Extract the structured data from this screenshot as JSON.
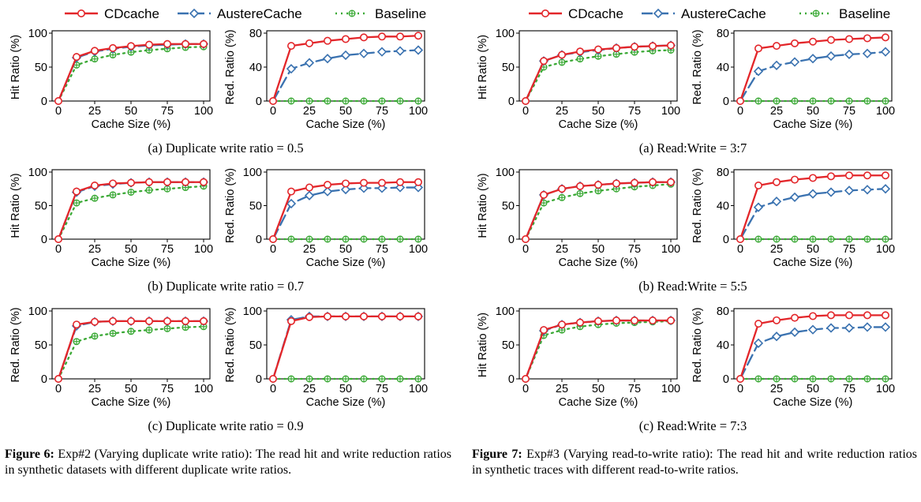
{
  "legend": {
    "cd": "CDcache",
    "austere": "AustereCache",
    "base": "Baseline"
  },
  "colors": {
    "cd": "#e3262a",
    "austere": "#3a72b0",
    "base": "#3aa935"
  },
  "figures": [
    {
      "caption": {
        "label": "Figure 6:",
        "text": " Exp#2 (Varying duplicate write ratio): The read hit and write reduction ratios in synthetic datasets with different duplicate write ratios."
      },
      "rows": [
        {
          "sub": "(a) Duplicate write ratio = 0.5"
        },
        {
          "sub": "(b) Duplicate write ratio = 0.7"
        },
        {
          "sub": "(c) Duplicate write ratio = 0.9"
        }
      ]
    },
    {
      "caption": {
        "label": "Figure 7:",
        "text": " Exp#3 (Varying read-to-write ratio): The read hit and write reduction ratios in synthetic traces with different read-to-write ratios."
      },
      "rows": [
        {
          "sub": "(a) Read:Write = 3:7"
        },
        {
          "sub": "(b) Read:Write = 5:5"
        },
        {
          "sub": "(c) Read:Write = 7:3"
        }
      ]
    }
  ],
  "chart_data": [
    {
      "type": "line",
      "figure": "6a-left",
      "xlabel": "Cache Size (%)",
      "ylabel": "Hit Ratio (%)",
      "xlim": [
        0,
        100
      ],
      "ylim": [
        0,
        100
      ],
      "xticks": [
        0,
        25,
        50,
        75,
        100
      ],
      "yticks": [
        0,
        50,
        100
      ],
      "x": [
        0,
        12.5,
        25,
        37.5,
        50,
        62.5,
        75,
        87.5,
        100
      ],
      "series": [
        {
          "name": "CDcache",
          "values": [
            0,
            65,
            74,
            78,
            81,
            83,
            84,
            84,
            84
          ]
        },
        {
          "name": "AustereCache",
          "values": [
            0,
            64,
            73,
            77,
            80,
            82,
            83,
            84,
            84
          ]
        },
        {
          "name": "Baseline",
          "values": [
            0,
            53,
            62,
            68,
            72,
            75,
            77,
            79,
            80
          ]
        }
      ]
    },
    {
      "type": "line",
      "figure": "6a-right",
      "xlabel": "Cache Size (%)",
      "ylabel": "Red. Ratio (%)",
      "xlim": [
        0,
        100
      ],
      "ylim": [
        0,
        80
      ],
      "xticks": [
        0,
        25,
        50,
        75,
        100
      ],
      "yticks": [
        0,
        40,
        80
      ],
      "x": [
        0,
        12.5,
        25,
        37.5,
        50,
        62.5,
        75,
        87.5,
        100
      ],
      "series": [
        {
          "name": "CDcache",
          "values": [
            0,
            65,
            68,
            71,
            73,
            75,
            76,
            76,
            77
          ]
        },
        {
          "name": "AustereCache",
          "values": [
            0,
            38,
            45,
            50,
            54,
            56,
            58,
            59,
            60
          ]
        },
        {
          "name": "Baseline",
          "values": [
            0,
            0,
            0,
            0,
            0,
            0,
            0,
            0,
            0
          ]
        }
      ]
    },
    {
      "type": "line",
      "figure": "6b-left",
      "xlabel": "Cache Size (%)",
      "ylabel": "Hit Ratio (%)",
      "xlim": [
        0,
        100
      ],
      "ylim": [
        0,
        100
      ],
      "xticks": [
        0,
        25,
        50,
        75,
        100
      ],
      "yticks": [
        0,
        50,
        100
      ],
      "x": [
        0,
        12.5,
        25,
        37.5,
        50,
        62.5,
        75,
        87.5,
        100
      ],
      "series": [
        {
          "name": "CDcache",
          "values": [
            0,
            71,
            80,
            83,
            84,
            85,
            85,
            85,
            85
          ]
        },
        {
          "name": "AustereCache",
          "values": [
            0,
            70,
            79,
            82,
            84,
            85,
            85,
            85,
            85
          ]
        },
        {
          "name": "Baseline",
          "values": [
            0,
            54,
            61,
            66,
            70,
            73,
            75,
            77,
            79
          ]
        }
      ]
    },
    {
      "type": "line",
      "figure": "6b-right",
      "xlabel": "Cache Size (%)",
      "ylabel": "Red. Ratio (%)",
      "xlim": [
        0,
        100
      ],
      "ylim": [
        0,
        100
      ],
      "xticks": [
        0,
        25,
        50,
        75,
        100
      ],
      "yticks": [
        0,
        50,
        100
      ],
      "x": [
        0,
        12.5,
        25,
        37.5,
        50,
        62.5,
        75,
        87.5,
        100
      ],
      "series": [
        {
          "name": "CDcache",
          "values": [
            0,
            71,
            77,
            81,
            83,
            84,
            84,
            85,
            85
          ]
        },
        {
          "name": "AustereCache",
          "values": [
            0,
            53,
            65,
            71,
            74,
            76,
            76,
            77,
            77
          ]
        },
        {
          "name": "Baseline",
          "values": [
            0,
            0,
            0,
            0,
            0,
            0,
            0,
            0,
            0
          ]
        }
      ]
    },
    {
      "type": "line",
      "figure": "6c-left",
      "xlabel": "Cache Size (%)",
      "ylabel": "Red. Ratio (%)",
      "xlim": [
        0,
        100
      ],
      "ylim": [
        0,
        100
      ],
      "xticks": [
        0,
        25,
        50,
        75,
        100
      ],
      "yticks": [
        0,
        50,
        100
      ],
      "x": [
        0,
        12.5,
        25,
        37.5,
        50,
        62.5,
        75,
        87.5,
        100
      ],
      "series": [
        {
          "name": "CDcache",
          "values": [
            0,
            80,
            84,
            85,
            85,
            85,
            85,
            85,
            85
          ]
        },
        {
          "name": "AustereCache",
          "values": [
            0,
            78,
            84,
            85,
            85,
            85,
            85,
            85,
            85
          ]
        },
        {
          "name": "Baseline",
          "values": [
            0,
            55,
            63,
            67,
            70,
            72,
            74,
            76,
            77
          ]
        }
      ]
    },
    {
      "type": "line",
      "figure": "6c-right",
      "xlabel": "Cache Size (%)",
      "ylabel": "Red. Ratio (%)",
      "xlim": [
        0,
        100
      ],
      "ylim": [
        0,
        100
      ],
      "xticks": [
        0,
        25,
        50,
        75,
        100
      ],
      "yticks": [
        0,
        50,
        100
      ],
      "x": [
        0,
        12.5,
        25,
        37.5,
        50,
        62.5,
        75,
        87.5,
        100
      ],
      "series": [
        {
          "name": "CDcache",
          "values": [
            0,
            85,
            91,
            92,
            92,
            92,
            92,
            92,
            92
          ]
        },
        {
          "name": "AustereCache",
          "values": [
            0,
            87,
            92,
            92,
            92,
            92,
            92,
            92,
            92
          ]
        },
        {
          "name": "Baseline",
          "values": [
            0,
            0,
            0,
            0,
            0,
            0,
            0,
            0,
            0
          ]
        }
      ]
    },
    {
      "type": "line",
      "figure": "7a-left",
      "xlabel": "Cache Size (%)",
      "ylabel": "Hit Ratio (%)",
      "xlim": [
        0,
        100
      ],
      "ylim": [
        0,
        100
      ],
      "xticks": [
        0,
        25,
        50,
        75,
        100
      ],
      "yticks": [
        0,
        50,
        100
      ],
      "x": [
        0,
        12.5,
        25,
        37.5,
        50,
        62.5,
        75,
        87.5,
        100
      ],
      "series": [
        {
          "name": "CDcache",
          "values": [
            0,
            59,
            68,
            73,
            76,
            78,
            80,
            81,
            82
          ]
        },
        {
          "name": "AustereCache",
          "values": [
            0,
            59,
            68,
            72,
            75,
            78,
            80,
            81,
            82
          ]
        },
        {
          "name": "Baseline",
          "values": [
            0,
            50,
            57,
            62,
            66,
            69,
            72,
            74,
            75
          ]
        }
      ]
    },
    {
      "type": "line",
      "figure": "7a-right",
      "xlabel": "Cache Size (%)",
      "ylabel": "Red. Ratio (%)",
      "xlim": [
        0,
        100
      ],
      "ylim": [
        0,
        80
      ],
      "xticks": [
        0,
        25,
        50,
        75,
        100
      ],
      "yticks": [
        0,
        40,
        80
      ],
      "x": [
        0,
        12.5,
        25,
        37.5,
        50,
        62.5,
        75,
        87.5,
        100
      ],
      "series": [
        {
          "name": "CDcache",
          "values": [
            0,
            62,
            65,
            68,
            70,
            72,
            73,
            74,
            75
          ]
        },
        {
          "name": "AustereCache",
          "values": [
            0,
            35,
            42,
            46,
            50,
            53,
            55,
            56,
            58
          ]
        },
        {
          "name": "Baseline",
          "values": [
            0,
            0,
            0,
            0,
            0,
            0,
            0,
            0,
            0
          ]
        }
      ]
    },
    {
      "type": "line",
      "figure": "7b-left",
      "xlabel": "Cache Size (%)",
      "ylabel": "Hit Ratio (%)",
      "xlim": [
        0,
        100
      ],
      "ylim": [
        0,
        100
      ],
      "xticks": [
        0,
        25,
        50,
        75,
        100
      ],
      "yticks": [
        0,
        50,
        100
      ],
      "x": [
        0,
        12.5,
        25,
        37.5,
        50,
        62.5,
        75,
        87.5,
        100
      ],
      "series": [
        {
          "name": "CDcache",
          "values": [
            0,
            66,
            75,
            79,
            81,
            83,
            84,
            85,
            85
          ]
        },
        {
          "name": "AustereCache",
          "values": [
            0,
            66,
            75,
            79,
            81,
            83,
            84,
            85,
            85
          ]
        },
        {
          "name": "Baseline",
          "values": [
            0,
            54,
            62,
            68,
            72,
            75,
            78,
            80,
            82
          ]
        }
      ]
    },
    {
      "type": "line",
      "figure": "7b-right",
      "xlabel": "Cache Size (%)",
      "ylabel": "Red. Ratio (%)",
      "xlim": [
        0,
        100
      ],
      "ylim": [
        0,
        80
      ],
      "xticks": [
        0,
        25,
        50,
        75,
        100
      ],
      "yticks": [
        0,
        40,
        80
      ],
      "x": [
        0,
        12.5,
        25,
        37.5,
        50,
        62.5,
        75,
        87.5,
        100
      ],
      "series": [
        {
          "name": "CDcache",
          "values": [
            0,
            64,
            68,
            71,
            73,
            75,
            76,
            76,
            76
          ]
        },
        {
          "name": "AustereCache",
          "values": [
            0,
            38,
            45,
            50,
            54,
            56,
            58,
            59,
            60
          ]
        },
        {
          "name": "Baseline",
          "values": [
            0,
            0,
            0,
            0,
            0,
            0,
            0,
            0,
            0
          ]
        }
      ]
    },
    {
      "type": "line",
      "figure": "7c-left",
      "xlabel": "Cache Size (%)",
      "ylabel": "Hit Ratio (%)",
      "xlim": [
        0,
        100
      ],
      "ylim": [
        0,
        100
      ],
      "xticks": [
        0,
        25,
        50,
        75,
        100
      ],
      "yticks": [
        0,
        50,
        100
      ],
      "x": [
        0,
        12.5,
        25,
        37.5,
        50,
        62.5,
        75,
        87.5,
        100
      ],
      "series": [
        {
          "name": "CDcache",
          "values": [
            0,
            72,
            80,
            83,
            85,
            86,
            86,
            86,
            86
          ]
        },
        {
          "name": "AustereCache",
          "values": [
            0,
            71,
            80,
            83,
            85,
            86,
            86,
            86,
            86
          ]
        },
        {
          "name": "Baseline",
          "values": [
            0,
            64,
            72,
            77,
            80,
            82,
            83,
            84,
            85
          ]
        }
      ]
    },
    {
      "type": "line",
      "figure": "7c-right",
      "xlabel": "Cache Size (%)",
      "ylabel": "Red. Ratio (%)",
      "xlim": [
        0,
        100
      ],
      "ylim": [
        0,
        80
      ],
      "xticks": [
        0,
        25,
        50,
        75,
        100
      ],
      "yticks": [
        0,
        40,
        80
      ],
      "x": [
        0,
        12.5,
        25,
        37.5,
        50,
        62.5,
        75,
        87.5,
        100
      ],
      "series": [
        {
          "name": "CDcache",
          "values": [
            0,
            65,
            69,
            72,
            74,
            75,
            75,
            75,
            75
          ]
        },
        {
          "name": "AustereCache",
          "values": [
            0,
            42,
            50,
            55,
            58,
            60,
            60,
            61,
            61
          ]
        },
        {
          "name": "Baseline",
          "values": [
            0,
            0,
            0,
            0,
            0,
            0,
            0,
            0,
            0
          ]
        }
      ]
    }
  ]
}
